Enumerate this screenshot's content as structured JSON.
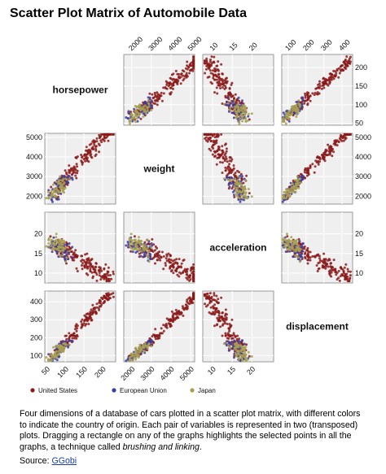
{
  "title": "Scatter Plot Matrix of Automobile Data",
  "chart_data": {
    "type": "scatter",
    "variables": [
      {
        "name": "horsepower",
        "lim": [
          45,
          235
        ],
        "ticks": [
          50,
          100,
          150,
          200
        ]
      },
      {
        "name": "weight",
        "lim": [
          1600,
          5200
        ],
        "ticks": [
          2000,
          3000,
          4000,
          5000
        ]
      },
      {
        "name": "acceleration",
        "lim": [
          7.5,
          25.5
        ],
        "ticks": [
          10,
          15,
          20
        ]
      },
      {
        "name": "displacement",
        "lim": [
          65,
          460
        ],
        "ticks": [
          100,
          200,
          300,
          400
        ]
      }
    ],
    "series": [
      {
        "name": "United States",
        "color": "#8b1a1a",
        "n": 180
      },
      {
        "name": "European Union",
        "color": "#3c3c9e",
        "n": 55
      },
      {
        "name": "Japan",
        "color": "#a8a050",
        "n": 60
      }
    ],
    "grid": true,
    "legend": "bottom"
  },
  "caption": {
    "text_before": "Four dimensions of a database of cars plotted in a scatter plot matrix, with different colors to indicate the country of origin. Each pair of variables is represented in two (transposed) plots. Dragging a rectangle on any of the graphs highlights the selected points in all the graphs, a technique called ",
    "emphasis": "brushing and linking",
    "text_after": "."
  },
  "source": {
    "label": "Source:",
    "link_text": "GGobi"
  }
}
